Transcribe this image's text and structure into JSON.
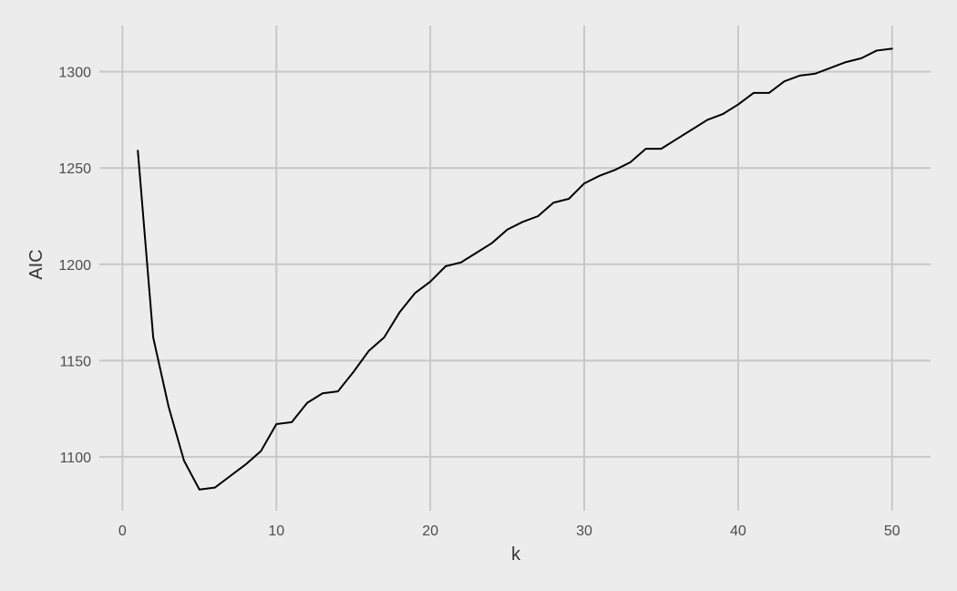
{
  "chart_data": {
    "type": "line",
    "title": "",
    "xlabel": "k",
    "ylabel": "AIC",
    "xlim": [
      -1.5,
      52.5
    ],
    "ylim": [
      1072,
      1324
    ],
    "x_ticks": [
      0,
      10,
      20,
      30,
      40,
      50
    ],
    "y_ticks": [
      1100,
      1150,
      1200,
      1250,
      1300
    ],
    "x_tick_labels": [
      "0",
      "10",
      "20",
      "30",
      "40",
      "50"
    ],
    "y_tick_labels": [
      "1100",
      "1150",
      "1200",
      "1250",
      "1300"
    ],
    "grid": true,
    "legend": "none",
    "background_color": "#ececec",
    "grid_color": "#c8c8c8",
    "line_color": "#000000",
    "series": [
      {
        "x": [
          1,
          2,
          3,
          4,
          5,
          6,
          7,
          8,
          9,
          10,
          11,
          12,
          13,
          14,
          15,
          16,
          17,
          18,
          19,
          20,
          21,
          22,
          23,
          24,
          25,
          26,
          27,
          28,
          29,
          30,
          31,
          32,
          33,
          34,
          35,
          36,
          37,
          38,
          39,
          40,
          41,
          42,
          43,
          44,
          45,
          46,
          47,
          48,
          49,
          50
        ],
        "values": [
          1259,
          1162,
          1126,
          1098,
          1083,
          1084,
          1090,
          1096,
          1103,
          1117,
          1118,
          1128,
          1133,
          1134,
          1144,
          1155,
          1162,
          1175,
          1185,
          1191,
          1199,
          1201,
          1206,
          1211,
          1218,
          1222,
          1225,
          1232,
          1234,
          1242,
          1246,
          1249,
          1253,
          1260,
          1260,
          1265,
          1270,
          1275,
          1278,
          1283,
          1289,
          1289,
          1295,
          1298,
          1299,
          1302,
          1305,
          1307,
          1311,
          1312
        ]
      }
    ]
  }
}
